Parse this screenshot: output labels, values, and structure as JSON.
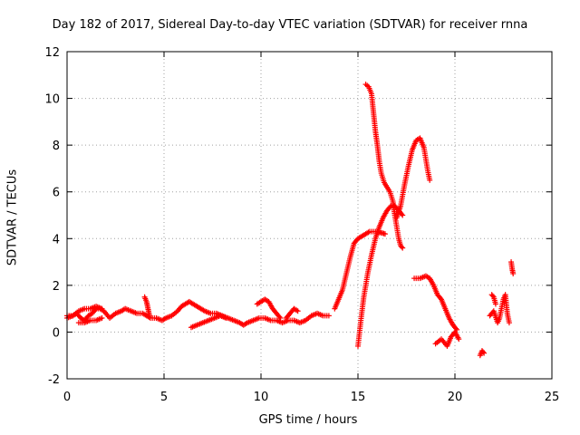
{
  "chart_data": {
    "type": "scatter",
    "title": "Day 182 of 2017, Sidereal Day-to-day VTEC variation (SDTVAR) for receiver rnna",
    "xlabel": "GPS time / hours",
    "ylabel": "SDTVAR / TECUs",
    "xlim": [
      0,
      25
    ],
    "ylim": [
      -2,
      12
    ],
    "xticks": [
      0,
      5,
      10,
      15,
      20,
      25
    ],
    "yticks": [
      -2,
      0,
      2,
      4,
      6,
      8,
      10,
      12
    ],
    "grid": true,
    "marker": "+",
    "color": "#ff0000",
    "series": [
      {
        "name": "SDTVAR",
        "segments": [
          [
            [
              0.0,
              0.7
            ],
            [
              0.3,
              0.7
            ],
            [
              0.5,
              0.8
            ],
            [
              0.7,
              0.6
            ],
            [
              0.9,
              0.5
            ],
            [
              1.1,
              0.7
            ],
            [
              1.3,
              0.8
            ],
            [
              1.5,
              1.0
            ],
            [
              1.7,
              1.0
            ],
            [
              1.9,
              0.9
            ],
            [
              2.2,
              0.6
            ],
            [
              2.5,
              0.8
            ],
            [
              2.8,
              0.9
            ],
            [
              3.0,
              1.0
            ],
            [
              3.3,
              0.9
            ],
            [
              3.6,
              0.8
            ],
            [
              3.9,
              0.8
            ],
            [
              4.1,
              0.7
            ],
            [
              4.3,
              0.6
            ],
            [
              4.6,
              0.6
            ],
            [
              4.9,
              0.5
            ],
            [
              5.1,
              0.6
            ],
            [
              5.4,
              0.7
            ],
            [
              5.7,
              0.9
            ],
            [
              5.9,
              1.1
            ],
            [
              6.1,
              1.2
            ],
            [
              6.3,
              1.3
            ],
            [
              6.5,
              1.2
            ],
            [
              6.7,
              1.1
            ],
            [
              6.9,
              1.0
            ],
            [
              7.1,
              0.9
            ],
            [
              7.4,
              0.8
            ],
            [
              7.7,
              0.8
            ],
            [
              8.0,
              0.7
            ],
            [
              8.3,
              0.6
            ],
            [
              8.6,
              0.5
            ],
            [
              8.9,
              0.4
            ],
            [
              9.1,
              0.3
            ],
            [
              9.3,
              0.4
            ],
            [
              9.6,
              0.5
            ],
            [
              9.9,
              0.6
            ],
            [
              10.2,
              0.6
            ],
            [
              10.5,
              0.5
            ],
            [
              10.8,
              0.5
            ],
            [
              11.1,
              0.4
            ],
            [
              11.4,
              0.5
            ],
            [
              11.7,
              0.5
            ],
            [
              12.0,
              0.4
            ],
            [
              12.3,
              0.5
            ],
            [
              12.6,
              0.7
            ],
            [
              12.9,
              0.8
            ],
            [
              13.2,
              0.7
            ],
            [
              13.5,
              0.7
            ]
          ],
          [
            [
              0.0,
              0.6
            ],
            [
              0.3,
              0.7
            ],
            [
              0.6,
              0.9
            ],
            [
              0.9,
              1.0
            ],
            [
              1.2,
              1.0
            ],
            [
              1.5,
              1.1
            ],
            [
              1.8,
              1.0
            ]
          ],
          [
            [
              0.6,
              0.4
            ],
            [
              0.9,
              0.4
            ],
            [
              1.2,
              0.5
            ],
            [
              1.5,
              0.5
            ],
            [
              1.8,
              0.6
            ]
          ],
          [
            [
              4.0,
              1.5
            ],
            [
              4.1,
              1.3
            ],
            [
              4.15,
              1.1
            ],
            [
              4.2,
              0.9
            ],
            [
              4.25,
              0.7
            ]
          ],
          [
            [
              6.4,
              0.2
            ],
            [
              6.7,
              0.3
            ],
            [
              7.0,
              0.4
            ],
            [
              7.3,
              0.5
            ],
            [
              7.6,
              0.6
            ],
            [
              7.9,
              0.7
            ],
            [
              8.2,
              0.6
            ]
          ],
          [
            [
              9.8,
              1.2
            ],
            [
              10.0,
              1.3
            ],
            [
              10.2,
              1.4
            ],
            [
              10.4,
              1.3
            ],
            [
              10.6,
              1.0
            ],
            [
              10.8,
              0.8
            ],
            [
              11.0,
              0.6
            ]
          ],
          [
            [
              11.3,
              0.6
            ],
            [
              11.5,
              0.8
            ],
            [
              11.7,
              1.0
            ],
            [
              11.9,
              0.9
            ]
          ],
          [
            [
              13.8,
              1.0
            ],
            [
              14.0,
              1.4
            ],
            [
              14.2,
              1.8
            ],
            [
              14.4,
              2.5
            ],
            [
              14.6,
              3.2
            ],
            [
              14.8,
              3.8
            ],
            [
              15.0,
              4.0
            ],
            [
              15.2,
              4.1
            ],
            [
              15.4,
              4.2
            ],
            [
              15.6,
              4.3
            ],
            [
              15.8,
              4.3
            ],
            [
              16.0,
              4.3
            ],
            [
              16.2,
              4.25
            ],
            [
              16.4,
              4.2
            ]
          ],
          [
            [
              15.0,
              -0.6
            ],
            [
              15.15,
              0.5
            ],
            [
              15.3,
              1.5
            ],
            [
              15.5,
              2.5
            ],
            [
              15.7,
              3.3
            ],
            [
              15.9,
              4.0
            ],
            [
              16.1,
              4.5
            ],
            [
              16.3,
              4.9
            ],
            [
              16.5,
              5.2
            ],
            [
              16.7,
              5.4
            ],
            [
              16.9,
              5.4
            ],
            [
              17.1,
              5.2
            ],
            [
              17.3,
              5.0
            ]
          ],
          [
            [
              15.4,
              10.6
            ],
            [
              15.55,
              10.5
            ],
            [
              15.7,
              10.2
            ],
            [
              15.8,
              9.4
            ],
            [
              15.9,
              8.6
            ],
            [
              16.0,
              8.0
            ],
            [
              16.1,
              7.3
            ],
            [
              16.2,
              6.8
            ],
            [
              16.35,
              6.4
            ],
            [
              16.5,
              6.2
            ],
            [
              16.65,
              6.0
            ],
            [
              16.8,
              5.6
            ],
            [
              16.9,
              5.0
            ],
            [
              17.0,
              4.5
            ],
            [
              17.1,
              4.0
            ],
            [
              17.2,
              3.7
            ],
            [
              17.3,
              3.6
            ]
          ],
          [
            [
              17.0,
              4.9
            ],
            [
              17.2,
              5.4
            ],
            [
              17.4,
              6.3
            ],
            [
              17.6,
              7.1
            ],
            [
              17.8,
              7.8
            ],
            [
              18.0,
              8.2
            ],
            [
              18.2,
              8.3
            ],
            [
              18.4,
              7.9
            ],
            [
              18.6,
              6.9
            ],
            [
              18.7,
              6.5
            ]
          ],
          [
            [
              17.9,
              2.3
            ],
            [
              18.2,
              2.3
            ],
            [
              18.5,
              2.4
            ],
            [
              18.7,
              2.3
            ],
            [
              18.9,
              2.0
            ],
            [
              19.1,
              1.6
            ],
            [
              19.3,
              1.4
            ],
            [
              19.5,
              1.0
            ],
            [
              19.7,
              0.6
            ],
            [
              19.9,
              0.3
            ],
            [
              20.1,
              0.1
            ]
          ],
          [
            [
              19.0,
              -0.5
            ],
            [
              19.3,
              -0.3
            ],
            [
              19.6,
              -0.6
            ],
            [
              19.8,
              -0.2
            ],
            [
              20.0,
              0.0
            ],
            [
              20.2,
              -0.3
            ]
          ],
          [
            [
              21.3,
              -1.0
            ],
            [
              21.4,
              -0.8
            ],
            [
              21.5,
              -0.9
            ]
          ],
          [
            [
              21.9,
              1.6
            ],
            [
              22.0,
              1.5
            ],
            [
              22.1,
              1.2
            ]
          ],
          [
            [
              21.8,
              0.7
            ],
            [
              22.0,
              0.9
            ],
            [
              22.2,
              0.4
            ],
            [
              22.3,
              0.6
            ],
            [
              22.4,
              1.0
            ],
            [
              22.5,
              1.4
            ],
            [
              22.6,
              1.6
            ],
            [
              22.7,
              0.8
            ],
            [
              22.8,
              0.4
            ]
          ],
          [
            [
              22.9,
              3.0
            ],
            [
              22.95,
              2.7
            ],
            [
              23.0,
              2.5
            ]
          ]
        ]
      }
    ]
  }
}
